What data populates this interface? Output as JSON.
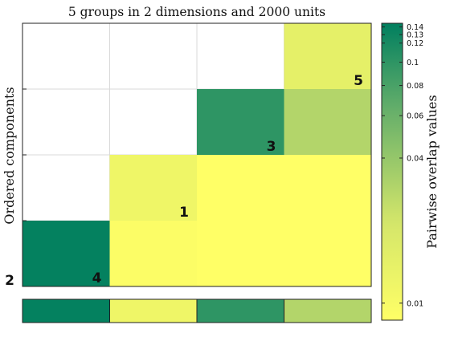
{
  "chart_data": {
    "type": "heatmap",
    "title": "5 groups in 2 dimensions and 2000 units",
    "ylabel": "Ordered components",
    "colorbar_label": "Pairwise overlap values",
    "component_order": [
      "2",
      "4",
      "1",
      "3",
      "5"
    ],
    "cells": [
      {
        "row": 1,
        "col": 0,
        "value": 0.14
      },
      {
        "row": 1,
        "col": 1,
        "value": 0.009
      },
      {
        "row": 1,
        "col": 2,
        "value": 0.008
      },
      {
        "row": 1,
        "col": 3,
        "value": 0.008
      },
      {
        "row": 2,
        "col": 1,
        "value": 0.012
      },
      {
        "row": 2,
        "col": 2,
        "value": 0.008
      },
      {
        "row": 2,
        "col": 3,
        "value": 0.008
      },
      {
        "row": 3,
        "col": 2,
        "value": 0.1
      },
      {
        "row": 3,
        "col": 3,
        "value": 0.03
      },
      {
        "row": 4,
        "col": 3,
        "value": 0.015
      }
    ],
    "bottom_bar_values": [
      0.14,
      0.012,
      0.1,
      0.03
    ],
    "colorbar": {
      "scale": "log",
      "range": [
        0.0085,
        0.145
      ],
      "ticks": [
        0.01,
        0.04,
        0.06,
        0.08,
        0.1,
        0.12,
        0.13,
        0.14
      ],
      "tick_labels": [
        "0.01",
        "0.04",
        "0.06",
        "0.08",
        "0.1",
        "0.12",
        "0.13",
        "0.14"
      ],
      "colors": [
        "#ffff66",
        "#d4e66a",
        "#62ad6a",
        "#007f5f"
      ]
    },
    "grid": true
  }
}
